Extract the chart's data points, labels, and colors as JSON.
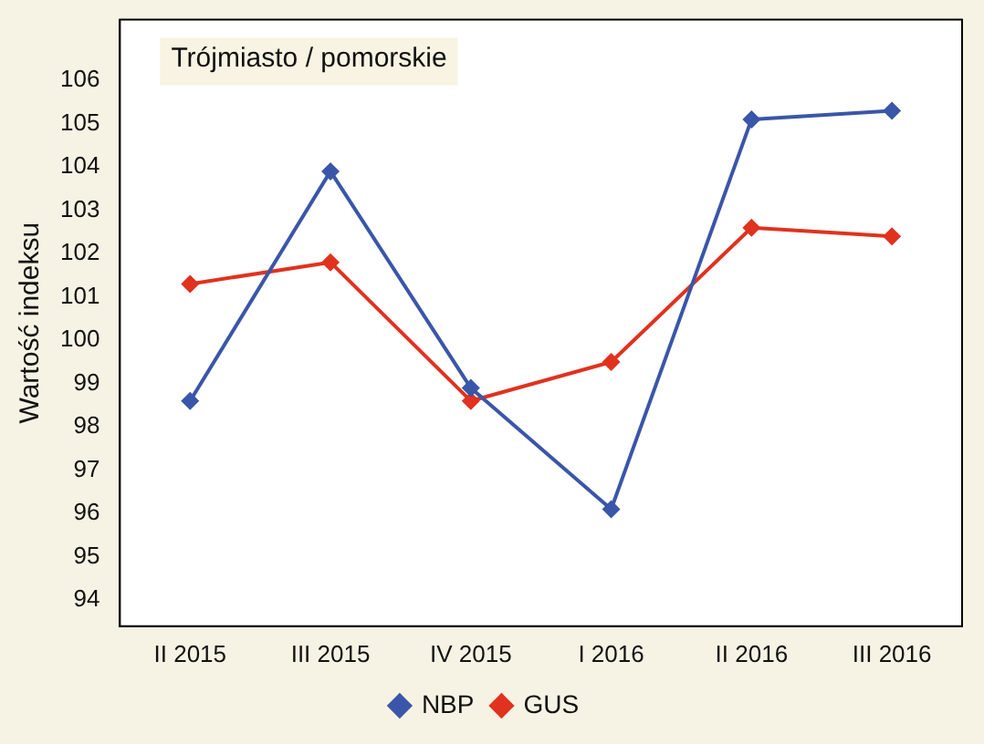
{
  "chart_data": {
    "type": "line",
    "ylabel": "Wartość indeksu",
    "annotations": [
      "Trójmiasto / pomorskie"
    ],
    "categories": [
      "II 2015",
      "III 2015",
      "IV 2015",
      "I 2016",
      "II 2016",
      "III 2016"
    ],
    "series": [
      {
        "name": "NBP",
        "color": "#3a56a8",
        "values": [
          98.6,
          103.9,
          98.9,
          96.1,
          105.1,
          105.3
        ]
      },
      {
        "name": "GUS",
        "color": "#e0321e",
        "values": [
          101.3,
          101.8,
          98.6,
          99.5,
          102.6,
          102.4
        ]
      }
    ],
    "ylim": [
      93.4,
      107.4
    ],
    "yticks": [
      94,
      95,
      96,
      97,
      98,
      99,
      100,
      101,
      102,
      103,
      104,
      105,
      106
    ],
    "grid": false,
    "legend": "bottom",
    "marker": "diamond",
    "line_style": "solid"
  }
}
